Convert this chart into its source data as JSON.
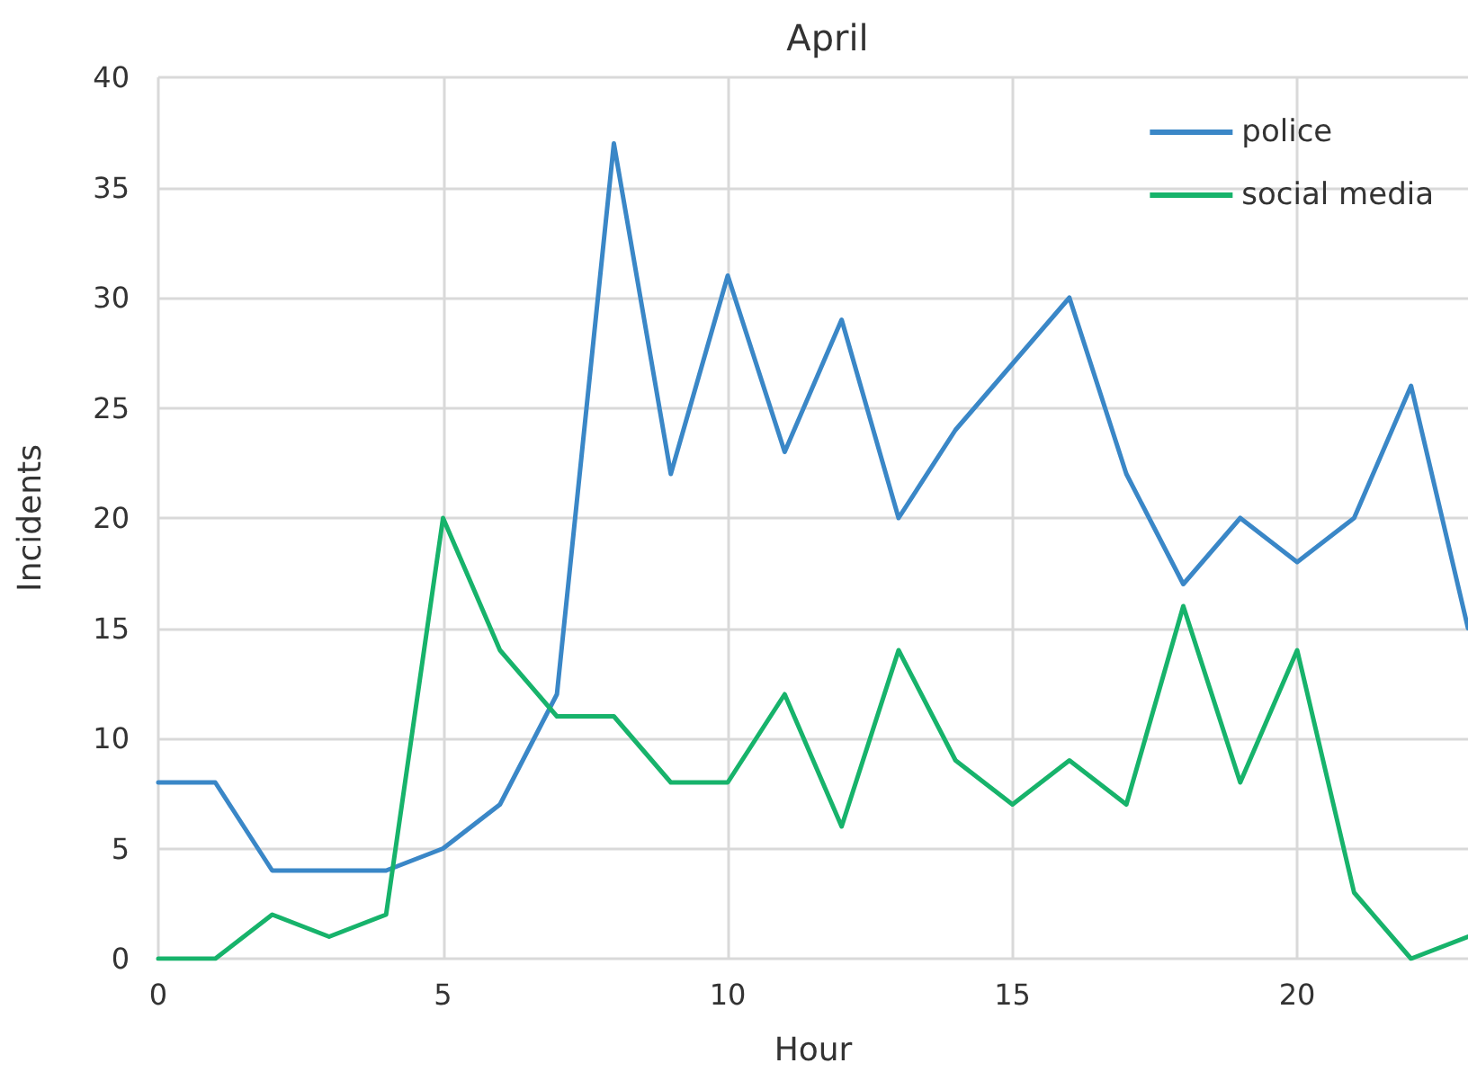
{
  "chart_data": {
    "type": "line",
    "title": "April",
    "xlabel": "Hour",
    "ylabel": "Incidents",
    "x": [
      0,
      1,
      2,
      3,
      4,
      5,
      6,
      7,
      8,
      9,
      10,
      11,
      12,
      13,
      14,
      15,
      16,
      17,
      18,
      19,
      20,
      21,
      22,
      23
    ],
    "series": [
      {
        "name": "police",
        "color": "#3a87c7",
        "values": [
          8,
          8,
          4,
          4,
          4,
          5,
          7,
          12,
          37,
          22,
          31,
          23,
          29,
          20,
          24,
          27,
          30,
          22,
          17,
          20,
          18,
          20,
          26,
          15
        ]
      },
      {
        "name": "social media",
        "color": "#17b36b",
        "values": [
          0,
          0,
          2,
          1,
          2,
          20,
          14,
          11,
          11,
          8,
          8,
          12,
          6,
          14,
          9,
          7,
          9,
          7,
          16,
          8,
          14,
          3,
          0,
          1
        ]
      }
    ],
    "xlim": [
      0,
      23
    ],
    "xticks": [
      0,
      5,
      10,
      15,
      20
    ],
    "ylim": [
      0,
      40
    ],
    "yticks": [
      0,
      5,
      10,
      15,
      20,
      25,
      30,
      35,
      40
    ],
    "grid": true,
    "legend": "top right",
    "marker": "none",
    "line_style": "solid"
  }
}
